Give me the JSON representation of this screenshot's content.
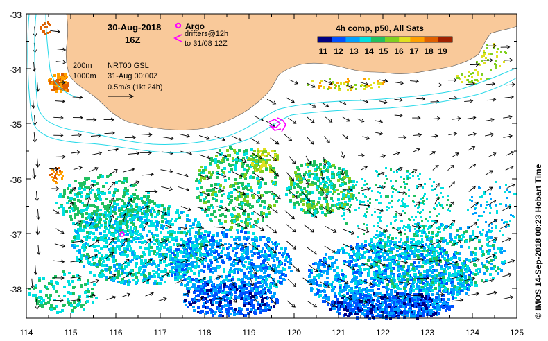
{
  "map": {
    "date": "30-Aug-2018",
    "hour": "16Z",
    "argo_label": "Argo",
    "drifters_label": "drifters@12h",
    "drifters_to": "to 31/08 12Z",
    "depth_200": "200m",
    "depth_1000": "1000m",
    "product": "NRT00 GSL",
    "product_date": "31-Aug 00:00Z",
    "scale_label": "0.5m/s (1kt 24h)",
    "colorbar_title": "4h comp, p50, All Sats",
    "colorbar_ticks": [
      "11",
      "12",
      "13",
      "14",
      "15",
      "16",
      "17",
      "18",
      "19"
    ],
    "credit": "© IMOS 14-Sep-2018 00:23 Hobart Time",
    "lon_ticks": [
      "114",
      "115",
      "116",
      "117",
      "118",
      "119",
      "120",
      "121",
      "122",
      "123",
      "124",
      "125"
    ],
    "lat_ticks": [
      "-33",
      "-34",
      "-35",
      "-36",
      "-37",
      "-38"
    ],
    "colors": {
      "land": "#f9c99a",
      "isobath": "#25d8e8",
      "argo": "#ff00ff",
      "sst_ramp": [
        "#000080",
        "#0050ff",
        "#00a0ff",
        "#00e0e0",
        "#20c060",
        "#80d020",
        "#e0e020",
        "#ffa000",
        "#e06000",
        "#a02000"
      ]
    }
  }
}
